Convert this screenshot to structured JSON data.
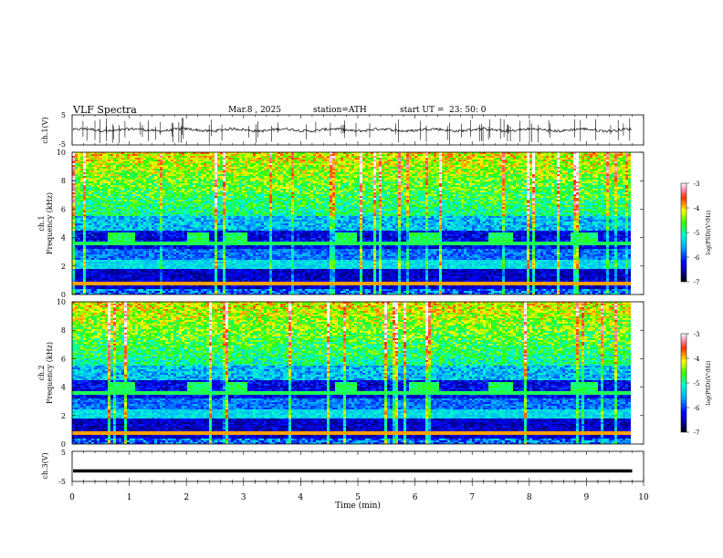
{
  "header": {
    "title": "VLF  Spectra",
    "date": "Mar.8 , 2025",
    "station": "station=ATH",
    "start_label": "start  UT  =",
    "start_time": "23: 50: 0"
  },
  "chart_data": [
    {
      "type": "line",
      "id": "ch1-waveform",
      "ylabel": "ch.1(V)",
      "yticks": [
        "5",
        "-5"
      ],
      "ylim": [
        -5,
        5
      ],
      "xlim": [
        0,
        10
      ],
      "data_end_min": 9.8,
      "baseline_v": 0,
      "approx_amplitude_v": 1,
      "color": "#000000"
    },
    {
      "type": "heatmap",
      "id": "ch1-spectrogram",
      "ylabel": "ch.1\nFrequency  (kHz)",
      "yticks": [
        "0",
        "2",
        "4",
        "6",
        "8",
        "10"
      ],
      "ylim": [
        0,
        10
      ],
      "xlim": [
        0,
        10
      ],
      "data_end_min": 9.8,
      "colorbar": {
        "label": "log(PSD)(V²/Hz)",
        "ticks": [
          "-3",
          "-4",
          "-5",
          "-6",
          "-7"
        ],
        "range": [
          -7,
          -3
        ]
      },
      "transmitter_bursts_min": [
        [
          0.6,
          1.1
        ],
        [
          2.0,
          2.4
        ],
        [
          2.7,
          3.05
        ],
        [
          4.6,
          5.0
        ],
        [
          5.9,
          6.4
        ],
        [
          7.3,
          7.7
        ],
        [
          8.7,
          9.2
        ]
      ],
      "burst_band_khz": [
        3.7,
        4.3
      ]
    },
    {
      "type": "heatmap",
      "id": "ch2-spectrogram",
      "ylabel": "ch.2\nFrequency  (kHz)",
      "yticks": [
        "0",
        "2",
        "4",
        "6",
        "8",
        "10"
      ],
      "ylim": [
        0,
        10
      ],
      "xlim": [
        0,
        10
      ],
      "data_end_min": 9.8,
      "colorbar": {
        "label": "log(PSD)(V²/Hz)",
        "ticks": [
          "-3",
          "-4",
          "-5",
          "-6",
          "-7"
        ],
        "range": [
          -7,
          -3
        ]
      },
      "transmitter_bursts_min": [
        [
          0.6,
          1.1
        ],
        [
          2.0,
          2.4
        ],
        [
          2.7,
          3.05
        ],
        [
          4.6,
          5.0
        ],
        [
          5.9,
          6.4
        ],
        [
          7.3,
          7.7
        ],
        [
          8.7,
          9.2
        ]
      ],
      "burst_band_khz": [
        3.7,
        4.3
      ]
    },
    {
      "type": "line",
      "id": "ch3-waveform",
      "ylabel": "ch.3(V)",
      "yticks": [
        "5",
        "-5"
      ],
      "ylim": [
        -5,
        5
      ],
      "xlim": [
        0,
        10
      ],
      "data_end_min": 9.8,
      "baseline_v": -1.5,
      "color": "#000000",
      "xlabel": "Time  (min)",
      "xticks": [
        "0",
        "1",
        "2",
        "3",
        "4",
        "5",
        "6",
        "7",
        "8",
        "9",
        "10"
      ]
    }
  ]
}
